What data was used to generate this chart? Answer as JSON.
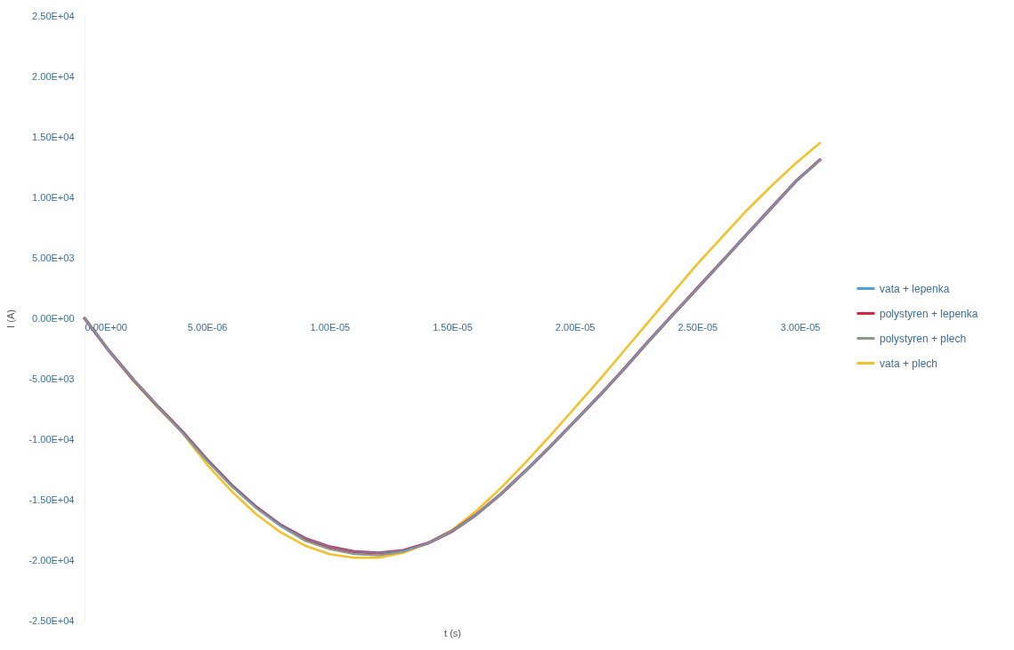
{
  "chart_data": {
    "type": "line",
    "xlabel": "t (s)",
    "ylabel": "I (A)",
    "x": [
      0,
      1e-06,
      2e-06,
      3e-06,
      4e-06,
      5e-06,
      6e-06,
      7e-06,
      8e-06,
      9e-06,
      1e-05,
      1.1e-05,
      1.2e-05,
      1.3e-05,
      1.4e-05,
      1.5e-05,
      1.6e-05,
      1.7e-05,
      1.8e-05,
      1.9e-05,
      2e-05,
      2.1e-05,
      2.2e-05,
      2.3e-05,
      2.4e-05,
      2.5e-05,
      2.6e-05,
      2.7e-05,
      2.8e-05,
      2.9e-05,
      3e-05
    ],
    "series": [
      {
        "name": "vata + lepenka",
        "color": "#4aa3df",
        "values": [
          0,
          -2700,
          -5100,
          -7300,
          -9400,
          -11700,
          -13800,
          -15600,
          -17100,
          -18200,
          -18900,
          -19300,
          -19400,
          -19200,
          -18600,
          -17600,
          -16200,
          -14500,
          -12600,
          -10600,
          -8500,
          -6400,
          -4200,
          -1900,
          300,
          2500,
          4700,
          6900,
          9100,
          11300,
          13100
        ]
      },
      {
        "name": "polystyren + lepenka",
        "color": "#d7263d",
        "values": [
          0,
          -2700,
          -5100,
          -7300,
          -9400,
          -11700,
          -13800,
          -15600,
          -17100,
          -18200,
          -18900,
          -19300,
          -19400,
          -19200,
          -18600,
          -17600,
          -16200,
          -14500,
          -12600,
          -10600,
          -8500,
          -6400,
          -4200,
          -1900,
          300,
          2500,
          4700,
          6900,
          9100,
          11300,
          13100
        ]
      },
      {
        "name": "polystyren + plech",
        "color": "#8c9a8c",
        "values": [
          0,
          -2700,
          -5100,
          -7300,
          -9500,
          -11800,
          -13900,
          -15700,
          -17200,
          -18400,
          -19100,
          -19500,
          -19600,
          -19300,
          -18600,
          -17600,
          -16200,
          -14500,
          -12600,
          -10600,
          -8500,
          -6400,
          -4200,
          -1900,
          300,
          2500,
          4700,
          6900,
          9100,
          11300,
          13100
        ]
      },
      {
        "name": "vata + plech",
        "color": "#f2c12e",
        "values": [
          0,
          -2700,
          -5200,
          -7400,
          -9500,
          -12100,
          -14300,
          -16200,
          -17700,
          -18800,
          -19500,
          -19800,
          -19800,
          -19400,
          -18600,
          -17500,
          -15900,
          -14000,
          -11900,
          -9700,
          -7400,
          -5100,
          -2700,
          -300,
          2100,
          4500,
          6700,
          8900,
          10900,
          12800,
          14500
        ]
      }
    ],
    "xlim": [
      0,
      3e-05
    ],
    "xticks": [
      {
        "value": 0,
        "label": "0.00E+00"
      },
      {
        "value": 5e-06,
        "label": "5.00E-06"
      },
      {
        "value": 1e-05,
        "label": "1.00E-05"
      },
      {
        "value": 1.5e-05,
        "label": "1.50E-05"
      },
      {
        "value": 2e-05,
        "label": "2.00E-05"
      },
      {
        "value": 2.5e-05,
        "label": "2.50E-05"
      },
      {
        "value": 3e-05,
        "label": "3.00E-05"
      }
    ],
    "ylim": [
      -25000,
      25000
    ],
    "yticks": [
      {
        "value": 25000,
        "label": "2.50E+04"
      },
      {
        "value": 20000,
        "label": "2.00E+04"
      },
      {
        "value": 15000,
        "label": "1.50E+04"
      },
      {
        "value": 10000,
        "label": "1.00E+04"
      },
      {
        "value": 5000,
        "label": "5.00E+03"
      },
      {
        "value": 0,
        "label": "0.00E+00"
      },
      {
        "value": -5000,
        "label": "-5.00E+03"
      },
      {
        "value": -10000,
        "label": "-1.00E+04"
      },
      {
        "value": -15000,
        "label": "-1.50E+04"
      },
      {
        "value": -20000,
        "label": "-2.00E+04"
      },
      {
        "value": -25000,
        "label": "-2.50E+04"
      }
    ],
    "legend": "right",
    "grid": false,
    "line_style": "solid"
  }
}
